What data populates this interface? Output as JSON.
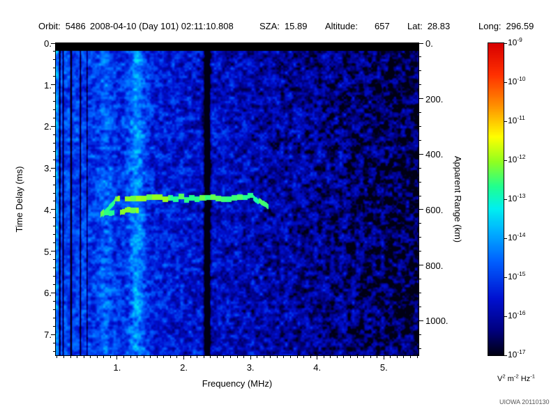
{
  "header": {
    "fields": [
      {
        "label": "Orbit:",
        "value": "5486"
      },
      {
        "label": "",
        "value": "2008-04-10 (Day 101) 02:11:10.808"
      },
      {
        "label": "SZA:",
        "value": "15.89"
      },
      {
        "label": "Altitude:",
        "value": "657"
      },
      {
        "label": "Lat:",
        "value": "28.83"
      },
      {
        "label": "Long:",
        "value": "296.59"
      }
    ]
  },
  "chart_data": {
    "type": "heatmap",
    "title": "",
    "xlabel": "Frequency (MHz)",
    "ylabel": "Time Delay (ms)",
    "ylabel_right": "Apparent Range (km)",
    "x_range_mhz": [
      0.08,
      5.52
    ],
    "x_major_ticks": [
      1,
      2,
      3,
      4,
      5
    ],
    "x_tick_labels": [
      "1.",
      "2.",
      "3.",
      "4.",
      "5."
    ],
    "x_minor_step_mhz": 0.1,
    "y_range_ms": [
      0,
      7.5
    ],
    "y_major_ticks": [
      0,
      1,
      2,
      3,
      4,
      5,
      6,
      7
    ],
    "y_tick_labels": [
      "0.",
      "1.",
      "2.",
      "3.",
      "4.",
      "5.",
      "6.",
      "7."
    ],
    "y_minor_step_ms": 0.2,
    "right_range_km": [
      0,
      1125
    ],
    "right_major_ticks": [
      0,
      200,
      400,
      600,
      800,
      1000
    ],
    "right_tick_labels": [
      "0.",
      "200.",
      "400.",
      "600.",
      "800.",
      "1000."
    ],
    "right_minor_step_km": 50,
    "grid": false,
    "colorbar": {
      "scale": "log10",
      "tick_exponents": [
        "-9",
        "-10",
        "-11",
        "-12",
        "-13",
        "-14",
        "-15",
        "-16",
        "-17"
      ],
      "unit_parts": [
        {
          "base": "V",
          "exp": "2"
        },
        {
          "base": "m",
          "exp": "-2"
        },
        {
          "base": "Hz",
          "exp": "-1"
        }
      ]
    },
    "colormap": [
      {
        "t": 0.0,
        "c": "#000014"
      },
      {
        "t": 0.08,
        "c": "#000080"
      },
      {
        "t": 0.18,
        "c": "#0010d0"
      },
      {
        "t": 0.3,
        "c": "#0060ff"
      },
      {
        "t": 0.4,
        "c": "#00b4ff"
      },
      {
        "t": 0.47,
        "c": "#00f0f0"
      },
      {
        "t": 0.54,
        "c": "#20ff90"
      },
      {
        "t": 0.62,
        "c": "#90ff20"
      },
      {
        "t": 0.7,
        "c": "#ffff00"
      },
      {
        "t": 0.8,
        "c": "#ff9000"
      },
      {
        "t": 0.9,
        "c": "#ff3000"
      },
      {
        "t": 1.0,
        "c": "#d80000"
      }
    ],
    "noise": {
      "seed": 5486,
      "base_left": -14.9,
      "slope_per_mhz": -0.33,
      "amplitude": 0.95,
      "amplitude_slope": 0.09
    },
    "features": {
      "top_blank_ms": 0.18,
      "bright_bands_mhz": [
        {
          "f": 0.1,
          "sigma": 0.06,
          "boost": 0.7
        },
        {
          "f": 0.82,
          "sigma": 0.1,
          "boost": 0.5
        },
        {
          "f": 1.3,
          "sigma": 0.13,
          "boost": 1.1
        }
      ],
      "dark_lines_mhz": [
        {
          "f": 0.14,
          "sigma": 0.012,
          "depth": 3.0
        },
        {
          "f": 0.19,
          "sigma": 0.01,
          "depth": 2.5
        },
        {
          "f": 0.31,
          "sigma": 0.012,
          "depth": 3.0
        },
        {
          "f": 0.45,
          "sigma": 0.01,
          "depth": 2.5
        },
        {
          "f": 0.55,
          "sigma": 0.008,
          "depth": 2.0
        },
        {
          "f": 2.35,
          "sigma": 0.04,
          "depth": 3.5
        }
      ],
      "echo_trace": {
        "level_log10": -12.5,
        "half_thickness_ms": 0.065,
        "block_mhz": 0.08,
        "segments": [
          {
            "f0": 0.75,
            "f1": 0.97,
            "d0": 4.16,
            "d1": 3.8,
            "gap": 0.05
          },
          {
            "f0": 0.97,
            "f1": 3.05,
            "d0": 3.76,
            "d1": 3.7,
            "gap": 0.07
          },
          {
            "f0": 3.05,
            "f1": 3.27,
            "d0": 3.72,
            "d1": 3.97,
            "gap": 0.1
          },
          {
            "f0": 0.78,
            "f1": 1.32,
            "d0": 4.1,
            "d1": 4.0,
            "gap": 0.3
          }
        ]
      }
    }
  },
  "footer": {
    "credit": "UIOWA 20110130"
  }
}
